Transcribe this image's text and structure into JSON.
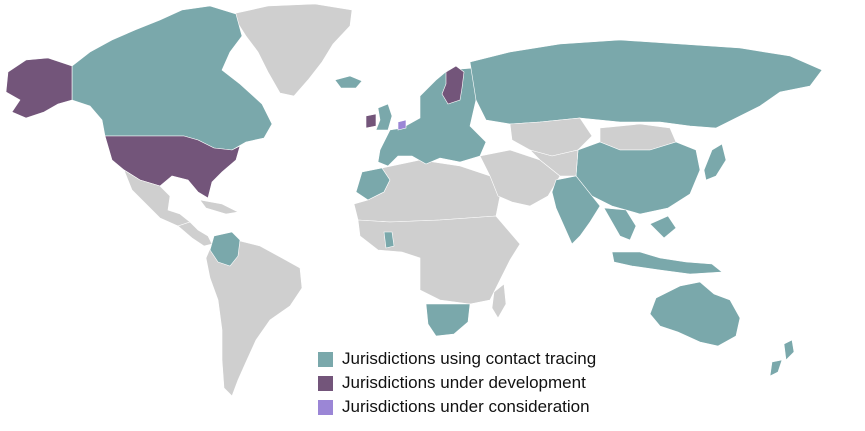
{
  "colors": {
    "background": "#ffffff",
    "no_data": "#cfcfcf",
    "using": "#7aa8ab",
    "development": "#73557a",
    "consideration": "#9b86d6"
  },
  "legend": [
    {
      "key": "using",
      "label": "Jurisdictions using contact tracing",
      "color": "#7aa8ab"
    },
    {
      "key": "development",
      "label": "Jurisdictions under development",
      "color": "#73557a"
    },
    {
      "key": "consideration",
      "label": "Jurisdictions under consideration",
      "color": "#9b86d6"
    }
  ],
  "regions": [
    {
      "name": "canada",
      "status": "using"
    },
    {
      "name": "alaska",
      "status": "development"
    },
    {
      "name": "united-states",
      "status": "development"
    },
    {
      "name": "greenland",
      "status": "none"
    },
    {
      "name": "iceland",
      "status": "using"
    },
    {
      "name": "mexico",
      "status": "none"
    },
    {
      "name": "central-america",
      "status": "none"
    },
    {
      "name": "colombia",
      "status": "using"
    },
    {
      "name": "south-america",
      "status": "none"
    },
    {
      "name": "uk",
      "status": "using"
    },
    {
      "name": "ireland",
      "status": "development"
    },
    {
      "name": "netherlands",
      "status": "consideration"
    },
    {
      "name": "finland",
      "status": "development"
    },
    {
      "name": "europe",
      "status": "using"
    },
    {
      "name": "north-africa",
      "status": "none"
    },
    {
      "name": "morocco",
      "status": "using"
    },
    {
      "name": "ghana",
      "status": "using"
    },
    {
      "name": "africa",
      "status": "none"
    },
    {
      "name": "south-africa",
      "status": "using"
    },
    {
      "name": "madagascar",
      "status": "none"
    },
    {
      "name": "middle-east",
      "status": "none"
    },
    {
      "name": "russia",
      "status": "using"
    },
    {
      "name": "kazakhstan",
      "status": "none"
    },
    {
      "name": "mongolia",
      "status": "none"
    },
    {
      "name": "china",
      "status": "using"
    },
    {
      "name": "india",
      "status": "using"
    },
    {
      "name": "southeast-asia",
      "status": "using"
    },
    {
      "name": "japan",
      "status": "using"
    },
    {
      "name": "indonesia",
      "status": "using"
    },
    {
      "name": "australia",
      "status": "using"
    },
    {
      "name": "new-zealand",
      "status": "using"
    }
  ]
}
